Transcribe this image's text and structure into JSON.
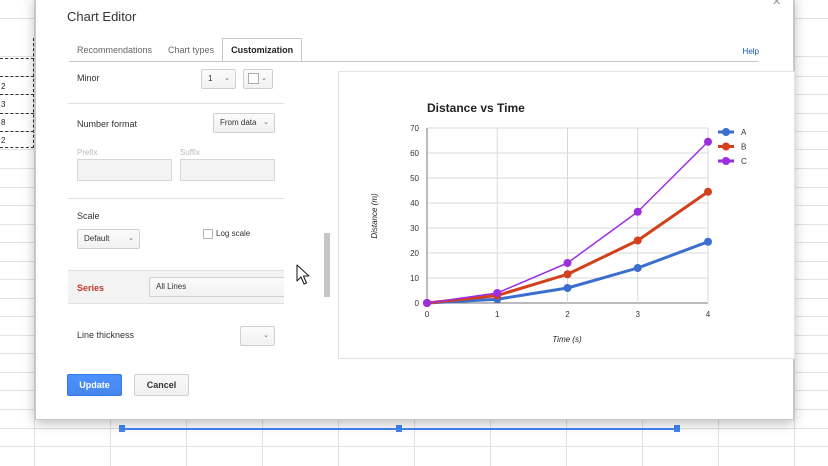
{
  "sheet": {
    "row_values": [
      "2",
      "3",
      "8",
      "2"
    ]
  },
  "dialog": {
    "title": "Chart Editor",
    "close_icon": "close-icon",
    "help_label": "Help",
    "tabs": [
      {
        "label": "Recommendations",
        "active": false
      },
      {
        "label": "Chart types",
        "active": false
      },
      {
        "label": "Customization",
        "active": true
      }
    ]
  },
  "settings": {
    "minor_label": "Minor",
    "minor_value": "1",
    "number_format_label": "Number format",
    "number_format_value": "From data",
    "prefix_label": "Prefix",
    "suffix_label": "Suffix",
    "scale_label": "Scale",
    "scale_value": "Default",
    "log_scale_label": "Log scale",
    "log_scale_checked": false,
    "series_label": "Series",
    "series_value": "All Lines",
    "line_thickness_label": "Line thickness"
  },
  "footer": {
    "update_label": "Update",
    "cancel_label": "Cancel"
  },
  "chart_data": {
    "type": "line",
    "title": "Distance vs Time",
    "xlabel": "Time (s)",
    "ylabel": "Distance (m)",
    "x": [
      0,
      1,
      2,
      3,
      4
    ],
    "xlim": [
      0,
      4
    ],
    "ylim": [
      0,
      70
    ],
    "xticks": [
      "0",
      "1",
      "2",
      "3",
      "4"
    ],
    "yticks": [
      "0",
      "10",
      "20",
      "30",
      "40",
      "50",
      "60",
      "70"
    ],
    "grid": true,
    "legend_position": "top-right",
    "series": [
      {
        "name": "A",
        "color": "#3b6fcf",
        "values": [
          0,
          1.5,
          6,
          14,
          24.5
        ]
      },
      {
        "name": "B",
        "color": "#d2401c",
        "values": [
          0,
          3,
          11.5,
          25,
          44.5
        ]
      },
      {
        "name": "C",
        "color": "#9d2ee0",
        "values": [
          0,
          4,
          16,
          36.5,
          64.5
        ]
      }
    ]
  }
}
